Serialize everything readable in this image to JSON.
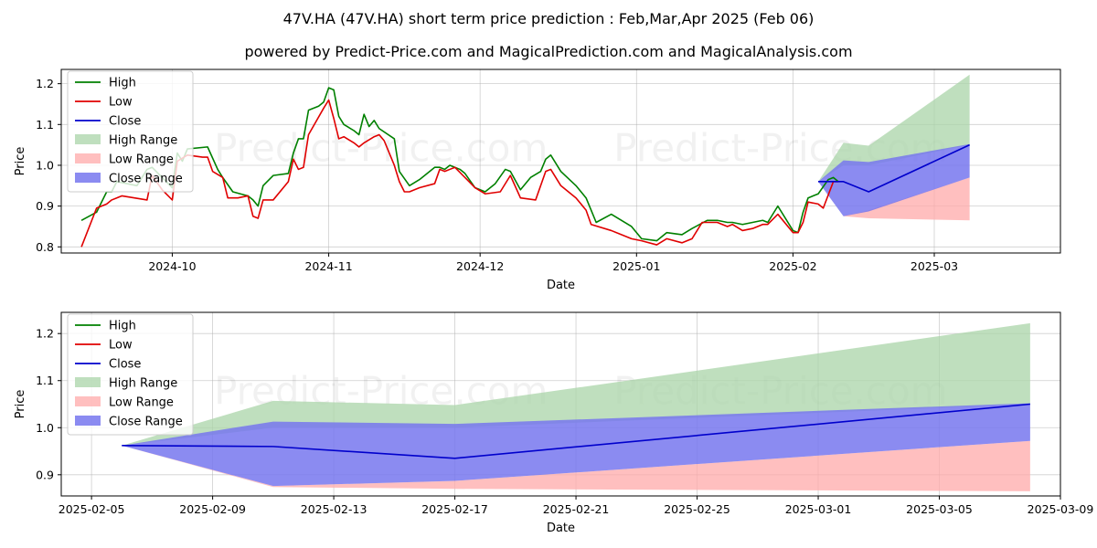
{
  "header": {
    "title": "47V.HA (47V.HA) short term price prediction : Feb,Mar,Apr 2025 (Feb 06)",
    "subtitle": "powered by Predict-Price.com and MagicalPrediction.com and MagicalAnalysis.com"
  },
  "watermark": "Predict-Price.com",
  "legend": [
    "High",
    "Low",
    "Close",
    "High Range",
    "Low Range",
    "Close Range"
  ],
  "colors": {
    "high": "#008000",
    "low": "#e00000",
    "close": "#0000cc",
    "high_range": "#aad4a8",
    "low_range": "#ffaaaa",
    "close_range": "#7777ee"
  },
  "chart_data": [
    {
      "type": "line",
      "xlabel": "Date",
      "ylabel": "Price",
      "x_ticks": [
        "2024-10",
        "2024-11",
        "2024-12",
        "2025-01",
        "2025-02",
        "2025-03"
      ],
      "x_tick_dates": [
        "2024-10-01",
        "2024-11-01",
        "2024-12-01",
        "2025-01-01",
        "2025-02-01",
        "2025-03-01"
      ],
      "y_ticks": [
        0.8,
        0.9,
        1.0,
        1.1,
        1.2
      ],
      "xlim": [
        "2024-09-09",
        "2025-03-26"
      ],
      "ylim": [
        0.785,
        1.235
      ],
      "legend_position": "top-left",
      "series": [
        {
          "name": "High",
          "points": [
            [
              "2024-09-13",
              0.865
            ],
            [
              "2024-09-16",
              0.885
            ],
            [
              "2024-09-18",
              0.935
            ],
            [
              "2024-09-19",
              0.935
            ],
            [
              "2024-09-20",
              0.96
            ],
            [
              "2024-09-24",
              0.95
            ],
            [
              "2024-09-26",
              0.99
            ],
            [
              "2024-09-27",
              0.995
            ],
            [
              "2024-10-01",
              0.945
            ],
            [
              "2024-10-02",
              1.03
            ],
            [
              "2024-10-03",
              1.01
            ],
            [
              "2024-10-04",
              1.04
            ],
            [
              "2024-10-08",
              1.045
            ],
            [
              "2024-10-10",
              0.99
            ],
            [
              "2024-10-11",
              0.97
            ],
            [
              "2024-10-13",
              0.935
            ],
            [
              "2024-10-16",
              0.925
            ],
            [
              "2024-10-17",
              0.915
            ],
            [
              "2024-10-18",
              0.9
            ],
            [
              "2024-10-19",
              0.95
            ],
            [
              "2024-10-21",
              0.975
            ],
            [
              "2024-10-24",
              0.98
            ],
            [
              "2024-10-25",
              1.03
            ],
            [
              "2024-10-26",
              1.065
            ],
            [
              "2024-10-27",
              1.065
            ],
            [
              "2024-10-28",
              1.135
            ],
            [
              "2024-10-30",
              1.145
            ],
            [
              "2024-10-31",
              1.155
            ],
            [
              "2024-11-01",
              1.19
            ],
            [
              "2024-11-02",
              1.185
            ],
            [
              "2024-11-03",
              1.12
            ],
            [
              "2024-11-04",
              1.1
            ],
            [
              "2024-11-06",
              1.085
            ],
            [
              "2024-11-07",
              1.075
            ],
            [
              "2024-11-08",
              1.125
            ],
            [
              "2024-11-09",
              1.095
            ],
            [
              "2024-11-10",
              1.11
            ],
            [
              "2024-11-11",
              1.09
            ],
            [
              "2024-11-14",
              1.065
            ],
            [
              "2024-11-15",
              0.985
            ],
            [
              "2024-11-17",
              0.95
            ],
            [
              "2024-11-19",
              0.965
            ],
            [
              "2024-11-22",
              0.995
            ],
            [
              "2024-11-23",
              0.995
            ],
            [
              "2024-11-24",
              0.99
            ],
            [
              "2024-11-25",
              1.0
            ],
            [
              "2024-11-27",
              0.99
            ],
            [
              "2024-11-28",
              0.98
            ],
            [
              "2024-11-30",
              0.945
            ],
            [
              "2024-12-02",
              0.935
            ],
            [
              "2024-12-04",
              0.955
            ],
            [
              "2024-12-06",
              0.99
            ],
            [
              "2024-12-07",
              0.985
            ],
            [
              "2024-12-09",
              0.94
            ],
            [
              "2024-12-11",
              0.97
            ],
            [
              "2024-12-13",
              0.985
            ],
            [
              "2024-12-14",
              1.015
            ],
            [
              "2024-12-15",
              1.025
            ],
            [
              "2024-12-17",
              0.985
            ],
            [
              "2024-12-20",
              0.95
            ],
            [
              "2024-12-22",
              0.92
            ],
            [
              "2024-12-23",
              0.89
            ],
            [
              "2024-12-24",
              0.86
            ],
            [
              "2024-12-27",
              0.88
            ],
            [
              "2024-12-31",
              0.85
            ],
            [
              "2025-01-02",
              0.82
            ],
            [
              "2025-01-05",
              0.815
            ],
            [
              "2025-01-07",
              0.835
            ],
            [
              "2025-01-10",
              0.83
            ],
            [
              "2025-01-12",
              0.845
            ],
            [
              "2025-01-15",
              0.865
            ],
            [
              "2025-01-17",
              0.865
            ],
            [
              "2025-01-19",
              0.86
            ],
            [
              "2025-01-20",
              0.86
            ],
            [
              "2025-01-22",
              0.855
            ],
            [
              "2025-01-24",
              0.86
            ],
            [
              "2025-01-26",
              0.865
            ],
            [
              "2025-01-27",
              0.86
            ],
            [
              "2025-01-29",
              0.9
            ],
            [
              "2025-02-01",
              0.84
            ],
            [
              "2025-02-02",
              0.835
            ],
            [
              "2025-02-03",
              0.885
            ],
            [
              "2025-02-04",
              0.92
            ],
            [
              "2025-02-06",
              0.93
            ],
            [
              "2025-02-08",
              0.965
            ],
            [
              "2025-02-09",
              0.97
            ],
            [
              "2025-02-10",
              0.96
            ]
          ]
        },
        {
          "name": "Low",
          "points": [
            [
              "2024-09-13",
              0.8
            ],
            [
              "2024-09-16",
              0.895
            ],
            [
              "2024-09-18",
              0.905
            ],
            [
              "2024-09-19",
              0.915
            ],
            [
              "2024-09-21",
              0.925
            ],
            [
              "2024-09-26",
              0.915
            ],
            [
              "2024-09-27",
              0.975
            ],
            [
              "2024-09-29",
              0.94
            ],
            [
              "2024-10-01",
              0.915
            ],
            [
              "2024-10-02",
              1.01
            ],
            [
              "2024-10-04",
              1.025
            ],
            [
              "2024-10-07",
              1.02
            ],
            [
              "2024-10-08",
              1.02
            ],
            [
              "2024-10-09",
              0.985
            ],
            [
              "2024-10-11",
              0.97
            ],
            [
              "2024-10-12",
              0.92
            ],
            [
              "2024-10-14",
              0.92
            ],
            [
              "2024-10-16",
              0.925
            ],
            [
              "2024-10-17",
              0.875
            ],
            [
              "2024-10-18",
              0.87
            ],
            [
              "2024-10-19",
              0.915
            ],
            [
              "2024-10-21",
              0.915
            ],
            [
              "2024-10-24",
              0.96
            ],
            [
              "2024-10-25",
              1.015
            ],
            [
              "2024-10-26",
              0.99
            ],
            [
              "2024-10-27",
              0.995
            ],
            [
              "2024-10-28",
              1.075
            ],
            [
              "2024-10-31",
              1.14
            ],
            [
              "2024-11-01",
              1.16
            ],
            [
              "2024-11-02",
              1.115
            ],
            [
              "2024-11-03",
              1.065
            ],
            [
              "2024-11-04",
              1.07
            ],
            [
              "2024-11-06",
              1.055
            ],
            [
              "2024-11-07",
              1.045
            ],
            [
              "2024-11-08",
              1.055
            ],
            [
              "2024-11-10",
              1.07
            ],
            [
              "2024-11-11",
              1.075
            ],
            [
              "2024-11-12",
              1.06
            ],
            [
              "2024-11-14",
              1.0
            ],
            [
              "2024-11-15",
              0.96
            ],
            [
              "2024-11-16",
              0.935
            ],
            [
              "2024-11-17",
              0.935
            ],
            [
              "2024-11-19",
              0.945
            ],
            [
              "2024-11-22",
              0.955
            ],
            [
              "2024-11-23",
              0.99
            ],
            [
              "2024-11-24",
              0.985
            ],
            [
              "2024-11-25",
              0.99
            ],
            [
              "2024-11-26",
              0.995
            ],
            [
              "2024-11-28",
              0.97
            ],
            [
              "2024-11-30",
              0.945
            ],
            [
              "2024-12-02",
              0.93
            ],
            [
              "2024-12-05",
              0.935
            ],
            [
              "2024-12-07",
              0.975
            ],
            [
              "2024-12-09",
              0.92
            ],
            [
              "2024-12-12",
              0.915
            ],
            [
              "2024-12-14",
              0.985
            ],
            [
              "2024-12-15",
              0.99
            ],
            [
              "2024-12-17",
              0.95
            ],
            [
              "2024-12-20",
              0.92
            ],
            [
              "2024-12-22",
              0.89
            ],
            [
              "2024-12-23",
              0.855
            ],
            [
              "2024-12-27",
              0.84
            ],
            [
              "2024-12-31",
              0.82
            ],
            [
              "2025-01-02",
              0.815
            ],
            [
              "2025-01-05",
              0.805
            ],
            [
              "2025-01-07",
              0.82
            ],
            [
              "2025-01-10",
              0.81
            ],
            [
              "2025-01-12",
              0.82
            ],
            [
              "2025-01-14",
              0.86
            ],
            [
              "2025-01-17",
              0.86
            ],
            [
              "2025-01-19",
              0.85
            ],
            [
              "2025-01-20",
              0.855
            ],
            [
              "2025-01-22",
              0.84
            ],
            [
              "2025-01-24",
              0.845
            ],
            [
              "2025-01-26",
              0.855
            ],
            [
              "2025-01-27",
              0.855
            ],
            [
              "2025-01-29",
              0.88
            ],
            [
              "2025-02-01",
              0.835
            ],
            [
              "2025-02-02",
              0.835
            ],
            [
              "2025-02-03",
              0.86
            ],
            [
              "2025-02-04",
              0.91
            ],
            [
              "2025-02-06",
              0.905
            ],
            [
              "2025-02-07",
              0.895
            ],
            [
              "2025-02-09",
              0.96
            ],
            [
              "2025-02-10",
              0.96
            ]
          ]
        },
        {
          "name": "Close",
          "points": [
            [
              "2025-02-06",
              0.96
            ],
            [
              "2025-02-11",
              0.96
            ],
            [
              "2025-02-16",
              0.935
            ],
            [
              "2025-03-08",
              1.05
            ]
          ]
        },
        {
          "name": "High Range",
          "band": [
            [
              "2025-02-06",
              0.96,
              0.96
            ],
            [
              "2025-02-11",
              1.055,
              1.0
            ],
            [
              "2025-02-16",
              1.048,
              1.0
            ],
            [
              "2025-03-08",
              1.222,
              1.05
            ]
          ]
        },
        {
          "name": "Low Range",
          "band": [
            [
              "2025-02-06",
              0.96,
              0.96
            ],
            [
              "2025-02-11",
              0.875,
              0.875
            ],
            [
              "2025-02-16",
              0.89,
              0.87
            ],
            [
              "2025-03-08",
              0.97,
              0.865
            ]
          ]
        },
        {
          "name": "Close Range",
          "band": [
            [
              "2025-02-06",
              0.96,
              0.96
            ],
            [
              "2025-02-11",
              1.012,
              0.875
            ],
            [
              "2025-02-16",
              1.008,
              0.887
            ],
            [
              "2025-03-08",
              1.052,
              0.97
            ]
          ]
        }
      ]
    },
    {
      "type": "line",
      "xlabel": "Date",
      "ylabel": "Price",
      "x_ticks": [
        "2025-02-05",
        "2025-02-09",
        "2025-02-13",
        "2025-02-17",
        "2025-02-21",
        "2025-02-25",
        "2025-03-01",
        "2025-03-05",
        "2025-03-09"
      ],
      "y_ticks": [
        0.9,
        1.0,
        1.1,
        1.2
      ],
      "xlim": [
        "2025-02-04",
        "2025-03-09"
      ],
      "ylim": [
        0.855,
        1.245
      ],
      "legend_position": "top-left",
      "series": [
        {
          "name": "Close",
          "points": [
            [
              "2025-02-06",
              0.962
            ],
            [
              "2025-02-11",
              0.96
            ],
            [
              "2025-02-17",
              0.935
            ],
            [
              "2025-03-08",
              1.05
            ]
          ]
        },
        {
          "name": "High Range",
          "band": [
            [
              "2025-02-06",
              0.962,
              0.962
            ],
            [
              "2025-02-11",
              1.057,
              1.0
            ],
            [
              "2025-02-17",
              1.048,
              1.0
            ],
            [
              "2025-03-08",
              1.222,
              1.05
            ]
          ]
        },
        {
          "name": "Low Range",
          "band": [
            [
              "2025-02-06",
              0.962,
              0.962
            ],
            [
              "2025-02-11",
              0.876,
              0.874
            ],
            [
              "2025-02-17",
              0.887,
              0.87
            ],
            [
              "2025-03-08",
              0.972,
              0.865
            ]
          ]
        },
        {
          "name": "Close Range",
          "band": [
            [
              "2025-02-06",
              0.962,
              0.962
            ],
            [
              "2025-02-11",
              1.013,
              0.876
            ],
            [
              "2025-02-17",
              1.008,
              0.887
            ],
            [
              "2025-03-08",
              1.052,
              0.972
            ]
          ]
        }
      ]
    }
  ]
}
